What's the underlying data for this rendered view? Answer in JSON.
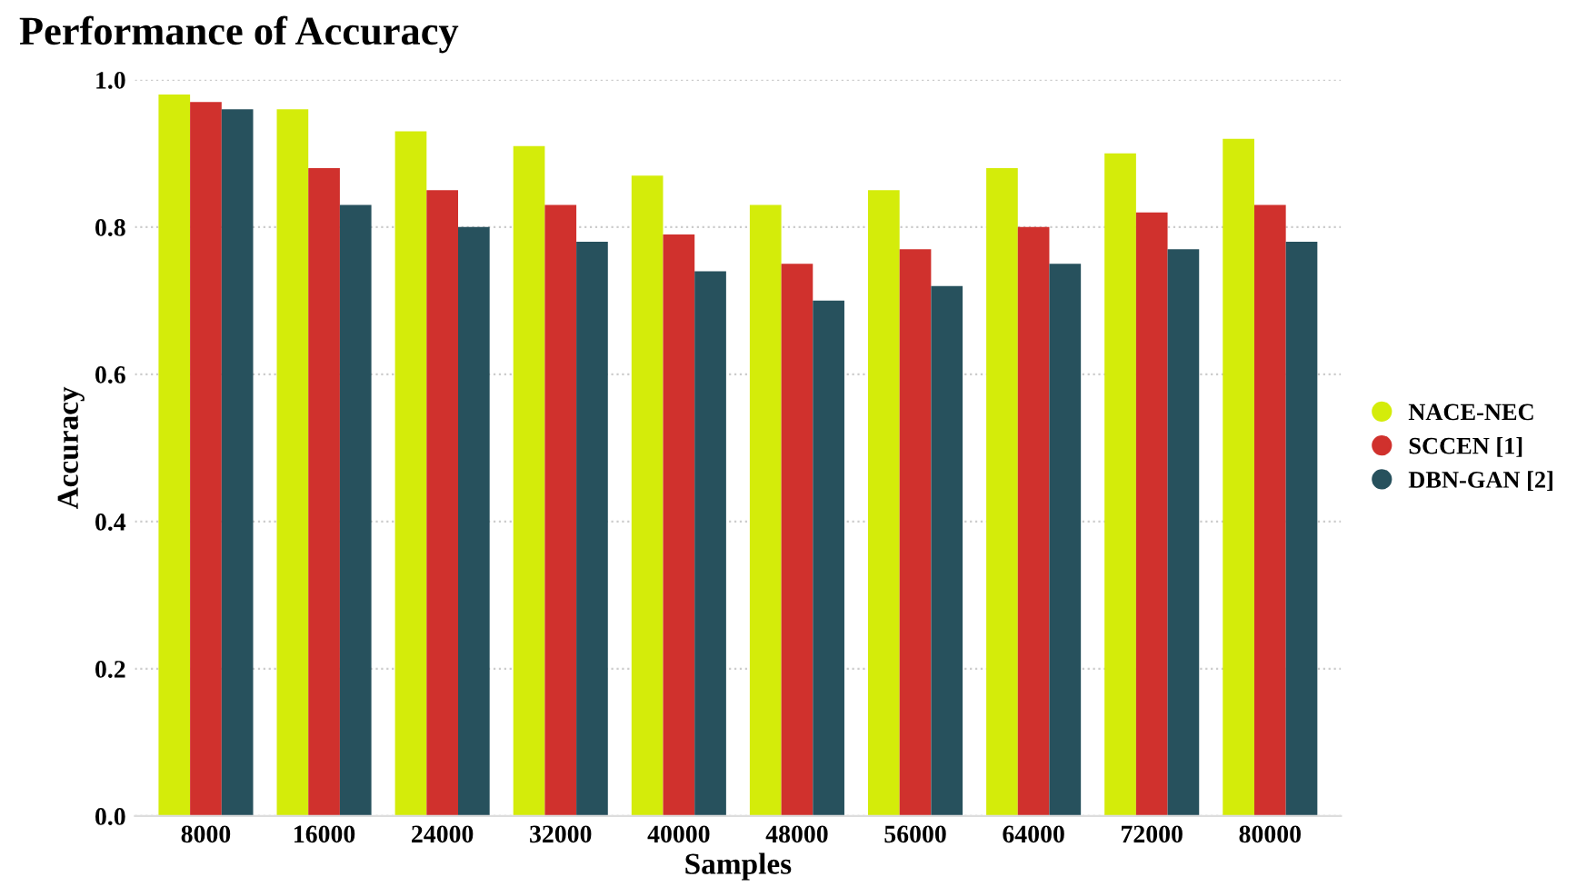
{
  "chart_data": {
    "type": "bar",
    "title": "Performance of Accuracy",
    "xlabel": "Samples",
    "ylabel": "Accuracy",
    "categories": [
      "8000",
      "16000",
      "24000",
      "32000",
      "40000",
      "48000",
      "56000",
      "64000",
      "72000",
      "80000"
    ],
    "series": [
      {
        "name": "NACE-NEC",
        "color": "#d4ec0a",
        "values": [
          0.98,
          0.96,
          0.93,
          0.91,
          0.87,
          0.83,
          0.85,
          0.88,
          0.9,
          0.92
        ]
      },
      {
        "name": "SCCEN [1]",
        "color": "#d0312d",
        "values": [
          0.97,
          0.88,
          0.85,
          0.83,
          0.79,
          0.75,
          0.77,
          0.8,
          0.82,
          0.83
        ]
      },
      {
        "name": "DBN-GAN [2]",
        "color": "#27515d",
        "values": [
          0.96,
          0.83,
          0.8,
          0.78,
          0.74,
          0.7,
          0.72,
          0.75,
          0.77,
          0.78
        ]
      }
    ],
    "ylim": [
      0,
      1
    ],
    "yticks": [
      {
        "value": 0,
        "label": "0.0"
      },
      {
        "value": 0.2,
        "label": "0.2"
      },
      {
        "value": 0.4,
        "label": "0.4"
      },
      {
        "value": 0.6,
        "label": "0.6"
      },
      {
        "value": 0.8,
        "label": "0.8"
      },
      {
        "value": 1,
        "label": "1.0"
      }
    ],
    "grid": "y",
    "legend": "right",
    "marker": "circle"
  }
}
